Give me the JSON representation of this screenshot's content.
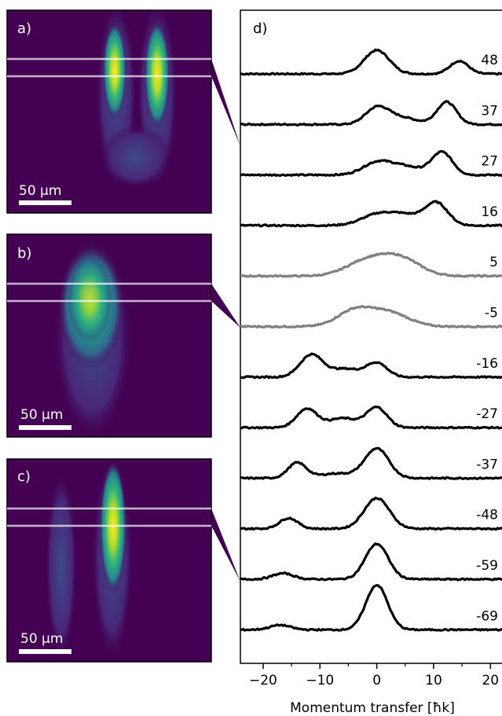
{
  "chart_data": {
    "type": "line",
    "panels": [
      {
        "letter": "a)",
        "scalebar": "50 µm",
        "highlight_color": "#440154"
      },
      {
        "letter": "b)",
        "scalebar": "50 µm",
        "highlight_color": "#440154"
      },
      {
        "letter": "c)",
        "scalebar": "50 µm",
        "highlight_color": "#440154"
      }
    ],
    "profile_panel_letter": "d)",
    "xlabel": "Momentum transfer [ħk]",
    "xlim": [
      -24,
      23
    ],
    "xticks": [
      -20,
      -10,
      0,
      10,
      20
    ],
    "xtick_labels": [
      "−20",
      "−10",
      "0",
      "10",
      "20"
    ],
    "colors": {
      "emphasis": "#000000",
      "muted": "#808080",
      "background": "#440154"
    },
    "series": [
      {
        "label": "48",
        "color": "#000000",
        "peaks": [
          {
            "center": 0,
            "height": 1.0,
            "width": 2.2
          },
          {
            "center": 14.5,
            "height": 0.55,
            "width": 1.6
          }
        ]
      },
      {
        "label": "37",
        "color": "#000000",
        "peaks": [
          {
            "center": 0,
            "height": 0.65,
            "width": 2.0
          },
          {
            "center": 12.3,
            "height": 0.95,
            "width": 1.7
          },
          {
            "center": 4,
            "height": 0.3,
            "width": 3
          }
        ]
      },
      {
        "label": "27",
        "color": "#000000",
        "peaks": [
          {
            "center": 0,
            "height": 0.5,
            "width": 2.5
          },
          {
            "center": 11.5,
            "height": 0.95,
            "width": 1.8
          },
          {
            "center": 5,
            "height": 0.35,
            "width": 3
          }
        ]
      },
      {
        "label": "16",
        "color": "#000000",
        "peaks": [
          {
            "center": 0.5,
            "height": 0.5,
            "width": 3.0
          },
          {
            "center": 10.5,
            "height": 0.95,
            "width": 2.0
          },
          {
            "center": 5.5,
            "height": 0.35,
            "width": 2.5
          }
        ]
      },
      {
        "label": "5",
        "color": "#808080",
        "peaks": [
          {
            "center": -2,
            "height": 0.6,
            "width": 3.5
          },
          {
            "center": 4,
            "height": 0.75,
            "width": 3.5
          }
        ]
      },
      {
        "label": "-5",
        "color": "#808080",
        "peaks": [
          {
            "center": -4,
            "height": 0.65,
            "width": 3.0
          },
          {
            "center": 2,
            "height": 0.6,
            "width": 3.5
          }
        ]
      },
      {
        "label": "-16",
        "color": "#000000",
        "peaks": [
          {
            "center": -11.5,
            "height": 0.95,
            "width": 2.0
          },
          {
            "center": 0,
            "height": 0.6,
            "width": 1.8
          },
          {
            "center": -5.5,
            "height": 0.35,
            "width": 2.5
          }
        ]
      },
      {
        "label": "-27",
        "color": "#000000",
        "peaks": [
          {
            "center": -12.3,
            "height": 0.8,
            "width": 1.8
          },
          {
            "center": 0,
            "height": 0.85,
            "width": 1.8
          },
          {
            "center": -6,
            "height": 0.4,
            "width": 2.5
          }
        ]
      },
      {
        "label": "-37",
        "color": "#000000",
        "peaks": [
          {
            "center": -14,
            "height": 0.65,
            "width": 1.6
          },
          {
            "center": 0,
            "height": 1.25,
            "width": 2.1
          },
          {
            "center": -7,
            "height": 0.2,
            "width": 3
          }
        ]
      },
      {
        "label": "-48",
        "color": "#000000",
        "peaks": [
          {
            "center": -15.5,
            "height": 0.45,
            "width": 1.6
          },
          {
            "center": 0,
            "height": 1.3,
            "width": 2.2
          }
        ]
      },
      {
        "label": "-59",
        "color": "#000000",
        "peaks": [
          {
            "center": -16.5,
            "height": 0.25,
            "width": 1.8
          },
          {
            "center": 0,
            "height": 1.5,
            "width": 2.0
          }
        ]
      },
      {
        "label": "-69",
        "color": "#000000",
        "peaks": [
          {
            "center": -17,
            "height": 0.2,
            "width": 1.8
          },
          {
            "center": 0,
            "height": 1.9,
            "width": 1.9
          }
        ]
      }
    ]
  }
}
